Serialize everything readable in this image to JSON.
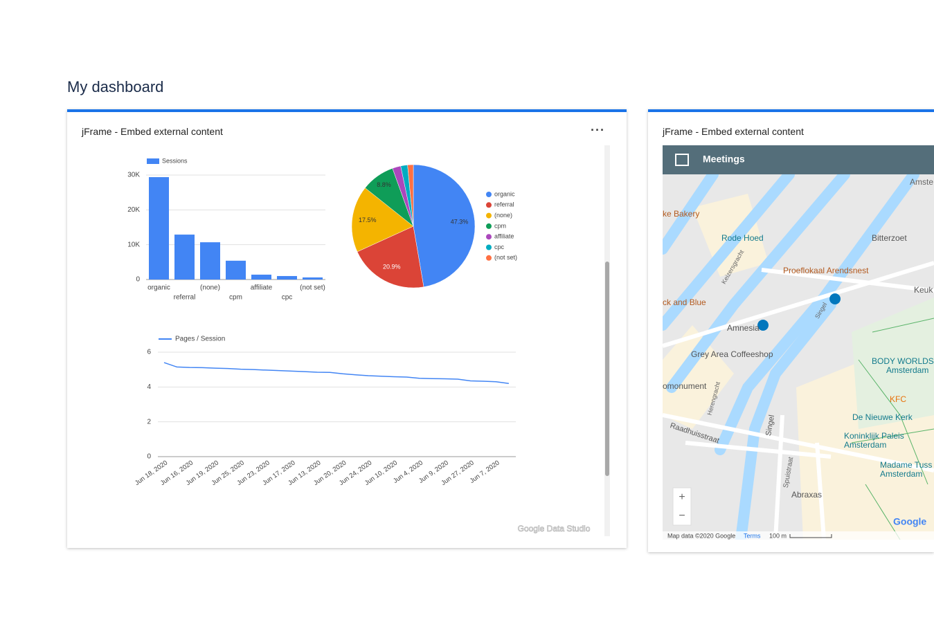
{
  "header": {
    "title": "My dashboard"
  },
  "cards": [
    {
      "title": "jFrame - Embed external content"
    },
    {
      "title": "jFrame - Embed external content"
    }
  ],
  "watermark": "Google Data Studio",
  "chart_data": [
    {
      "type": "bar",
      "categories": [
        "organic",
        "referral",
        "(none)",
        "cpm",
        "affiliate",
        "cpc",
        "(not set)"
      ],
      "series": [
        {
          "name": "Sessions",
          "color": "#4285f4",
          "values": [
            29400,
            12900,
            10700,
            5400,
            1400,
            1000,
            600
          ]
        }
      ],
      "ylim": [
        0,
        30000
      ],
      "yticks": [
        0,
        {
          "value": 10000,
          "label": "10K"
        },
        {
          "value": 20000,
          "label": "20K"
        },
        {
          "value": 30000,
          "label": "30K"
        }
      ],
      "grid": true
    },
    {
      "type": "pie",
      "categories": [
        "organic",
        "referral",
        "(none)",
        "cpm",
        "affiliate",
        "cpc",
        "(not set)"
      ],
      "values": [
        47.3,
        20.9,
        17.5,
        8.8,
        2.2,
        1.8,
        1.5
      ],
      "value_labels": [
        "47.3%",
        "20.9%",
        "17.5%",
        "8.8%",
        null,
        null,
        null
      ],
      "colors": [
        "#4285f4",
        "#db4437",
        "#f4b400",
        "#0f9d58",
        "#ab47bc",
        "#00acc1",
        "#ff7043"
      ],
      "legend": "right"
    },
    {
      "type": "line",
      "categories": [
        "Jun 18, 2020",
        null,
        "Jun 16, 2020",
        null,
        "Jun 19, 2020",
        null,
        "Jun 25, 2020",
        null,
        "Jun 23, 2020",
        null,
        "Jun 17, 2020",
        null,
        "Jun 13, 2020",
        null,
        "Jun 20, 2020",
        null,
        "Jun 24, 2020",
        null,
        "Jun 10, 2020",
        null,
        "Jun 4, 2020",
        null,
        "Jun 9, 2020",
        null,
        "Jun 27, 2020",
        null,
        "Jun 7, 2020",
        null
      ],
      "series": [
        {
          "name": "Pages / Session",
          "color": "#4285f4",
          "values": [
            5.4,
            5.15,
            5.12,
            5.11,
            5.08,
            5.06,
            5.02,
            5.0,
            4.97,
            4.94,
            4.91,
            4.88,
            4.85,
            4.84,
            4.76,
            4.7,
            4.65,
            4.62,
            4.59,
            4.57,
            4.5,
            4.48,
            4.47,
            4.45,
            4.35,
            4.33,
            4.3,
            4.2
          ]
        }
      ],
      "ylim": [
        0,
        6
      ],
      "yticks": [
        0,
        2,
        4,
        6
      ],
      "grid": true
    }
  ],
  "map": {
    "title": "Meetings",
    "labels": [
      "Amste",
      "ke Bakery",
      "Rode Hoed",
      "Bitterzoet",
      "Proeflokaal Arendsnest",
      "Keuk",
      "ck and Blue",
      "Amnesia",
      "Grey Area Coffeeshop",
      "BODY WORLDS",
      "Amsterdam",
      "omonument",
      "KFC",
      "De Nieuwe Kerk",
      "Koninklijk Paleis",
      "Amsterdam",
      "Madame Tuss",
      "Amsterdam",
      "Abraxas",
      "Raadhuisstraat",
      "Singel",
      "Herengracht",
      "Spuistraat",
      "Singel",
      "Keizersgracht"
    ],
    "footer": [
      "Map data ©2020 Google",
      "Terms",
      "100 m"
    ],
    "logo": "Google"
  }
}
